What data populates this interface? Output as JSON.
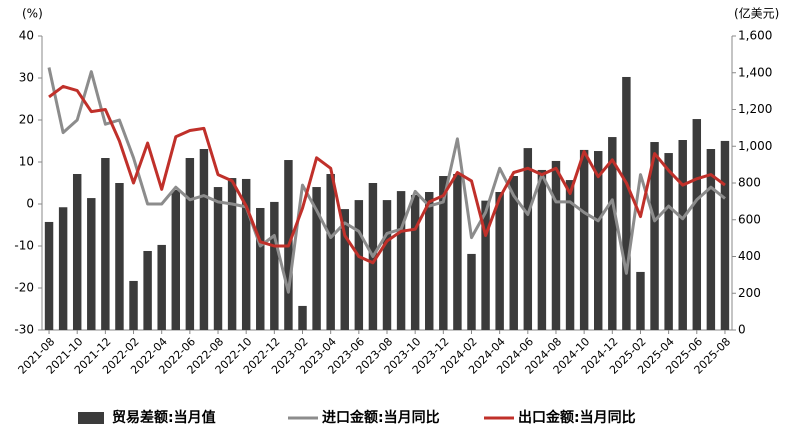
{
  "chart_data": {
    "type": "combo",
    "y_label": "(%)",
    "y2_label": "(亿美元)",
    "categories": [
      "2021-08",
      null,
      "2021-10",
      null,
      "2021-12",
      null,
      "2022-02",
      null,
      "2022-04",
      null,
      "2022-06",
      null,
      "2022-08",
      null,
      "2022-10",
      null,
      "2022-12",
      null,
      "2023-02",
      null,
      "2023-04",
      null,
      "2023-06",
      null,
      "2023-08",
      null,
      "2023-10",
      null,
      "2023-12",
      null,
      "2024-02",
      null,
      "2024-04",
      null,
      "2024-06",
      null,
      "2024-08",
      null,
      "2024-10",
      null,
      "2024-12",
      null,
      "2025-02",
      null,
      "2025-04",
      null,
      "2025-06",
      null,
      "2025-08"
    ],
    "ylim": [
      -30,
      40
    ],
    "yticks": [
      -30,
      -20,
      -10,
      0,
      10,
      20,
      30,
      40
    ],
    "y2lim": [
      0,
      1600
    ],
    "y2ticks": [
      0,
      200,
      400,
      600,
      800,
      {
        "value": 1000,
        "label": "1,000"
      },
      {
        "value": 1200,
        "label": "1,200"
      },
      {
        "value": 1400,
        "label": "1,400"
      },
      {
        "value": 1600,
        "label": "1,600"
      }
    ],
    "series": [
      {
        "name": "贸易差额:当月值",
        "type": "bar",
        "axis": "y2",
        "color": "#3b3b3b",
        "values": [
          588,
          668,
          849,
          718,
          936,
          800,
          267,
          430,
          463,
          762,
          936,
          985,
          778,
          827,
          822,
          664,
          697,
          925,
          131,
          778,
          849,
          658,
          707,
          800,
          707,
          756,
          735,
          751,
          838,
          849,
          414,
          704,
          751,
          838,
          990,
          871,
          920,
          816,
          980,
          974,
          1050,
          1377,
          316,
          1023,
          963,
          1034,
          1148,
          985,
          1029
        ]
      },
      {
        "name": "进口金额:当月同比",
        "type": "line",
        "axis": "y",
        "color": "#8c8c8c",
        "values": [
          32.5,
          17,
          20,
          31.5,
          19,
          20,
          11,
          0,
          0,
          4,
          1,
          2,
          0.5,
          0,
          -0.7,
          -10,
          -7.5,
          -21,
          4.5,
          -1.5,
          -8,
          -4.5,
          -6.5,
          -12.5,
          -7,
          -6,
          3,
          -0.5,
          0.5,
          15.5,
          -8,
          -2,
          8.5,
          2,
          -2.5,
          7,
          0.5,
          0.5,
          -2,
          -4,
          1,
          -16.5,
          7,
          -4,
          -0.5,
          -3.5,
          1,
          4,
          1.3
        ]
      },
      {
        "name": "出口金额:当月同比",
        "type": "line",
        "axis": "y",
        "color": "#c0302a",
        "values": [
          25.5,
          28,
          27,
          22,
          22.5,
          15,
          5,
          14.5,
          3.5,
          16,
          17.5,
          18,
          7,
          5.5,
          -0.5,
          -9,
          -10,
          -10,
          -1,
          11,
          8.5,
          -7.5,
          -12.5,
          -14,
          -8.8,
          -6.5,
          -6,
          0.5,
          2,
          7.5,
          5.5,
          -7.5,
          1.5,
          7.5,
          8.5,
          7,
          8.5,
          2.5,
          12.5,
          6.5,
          10.5,
          5,
          -3,
          12,
          8,
          4.5,
          6,
          7,
          4.5
        ]
      }
    ]
  }
}
